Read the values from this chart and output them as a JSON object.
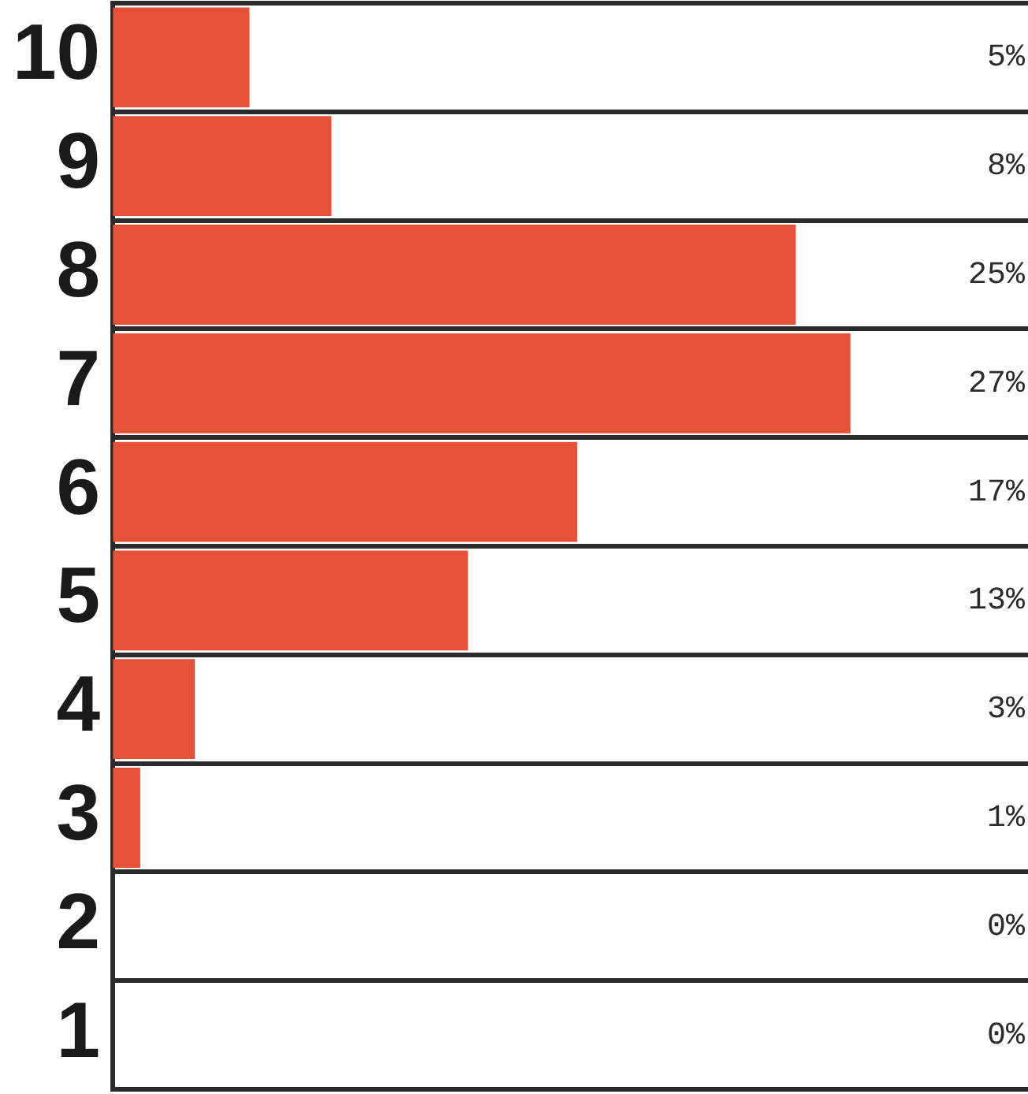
{
  "chart_data": {
    "type": "bar",
    "orientation": "horizontal",
    "categories": [
      "10",
      "9",
      "8",
      "7",
      "6",
      "5",
      "4",
      "3",
      "2",
      "1"
    ],
    "values": [
      5,
      8,
      25,
      27,
      17,
      13,
      3,
      1,
      0,
      0
    ],
    "value_labels": [
      "5%",
      "8%",
      "25%",
      "27%",
      "17%",
      "13%",
      "3%",
      "1%",
      "0%",
      "0%"
    ],
    "color": "#e65238",
    "xlim": [
      0,
      33.5
    ],
    "grid": "y",
    "tick_labels": "y",
    "legend": false
  }
}
